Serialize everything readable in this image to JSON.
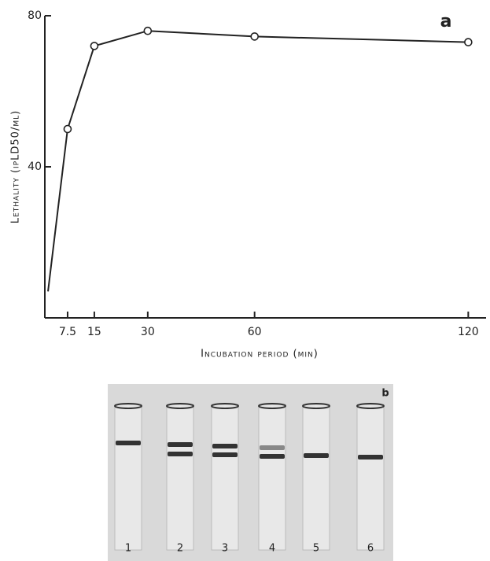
{
  "chart_data": {
    "type": "line",
    "panel_label": "a",
    "y_label": "Lethality (ipLD50/ml)",
    "x_label": "Incubation period (min)",
    "x": [
      2,
      7.5,
      15,
      30,
      60,
      120
    ],
    "values": [
      7,
      50,
      72,
      76,
      74.5,
      73
    ],
    "color": "#222",
    "xlim": [
      0,
      125
    ],
    "xticks": [
      7.5,
      15,
      30,
      60,
      120
    ],
    "ylim": [
      0,
      80
    ],
    "yticks": [
      40,
      80
    ]
  },
  "gel": {
    "panel_label": "b",
    "lanes": [
      "1",
      "2",
      "3",
      "4",
      "5",
      "6"
    ]
  }
}
